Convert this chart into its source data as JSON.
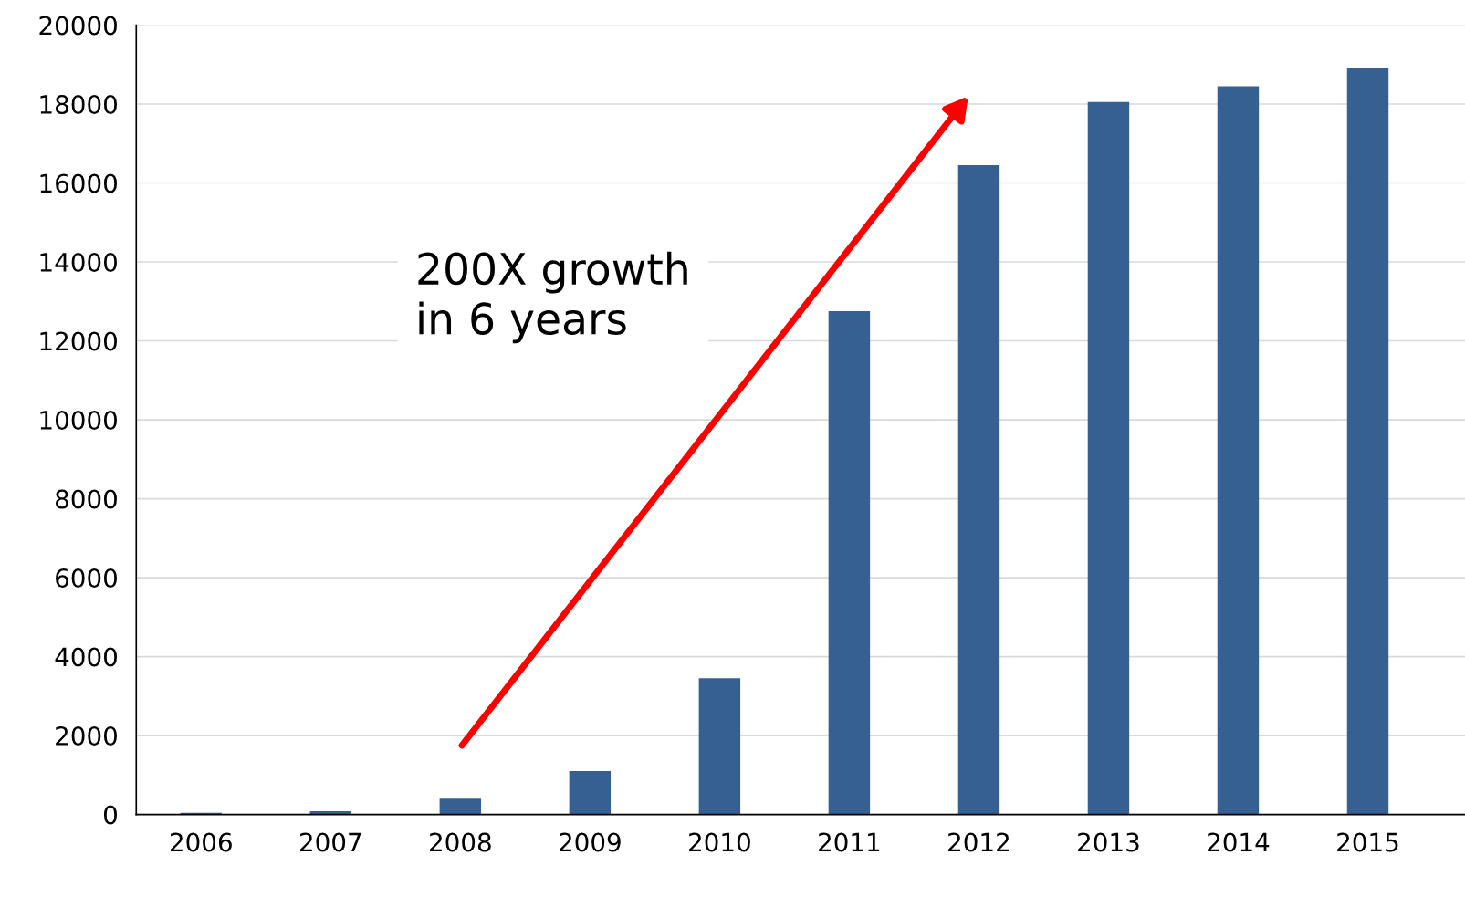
{
  "chart_data": {
    "type": "bar",
    "categories": [
      "2006",
      "2007",
      "2008",
      "2009",
      "2010",
      "2011",
      "2012",
      "2013",
      "2014",
      "2015"
    ],
    "values": [
      40,
      80,
      400,
      1100,
      3450,
      12750,
      16450,
      18050,
      18450,
      18900
    ],
    "color": "#376092",
    "ylim": [
      0,
      20000
    ],
    "yticks": [
      0,
      2000,
      4000,
      6000,
      8000,
      10000,
      12000,
      14000,
      16000,
      18000,
      20000
    ],
    "grid": "y",
    "annotations": [
      "200X growth\nin 6 years"
    ]
  }
}
